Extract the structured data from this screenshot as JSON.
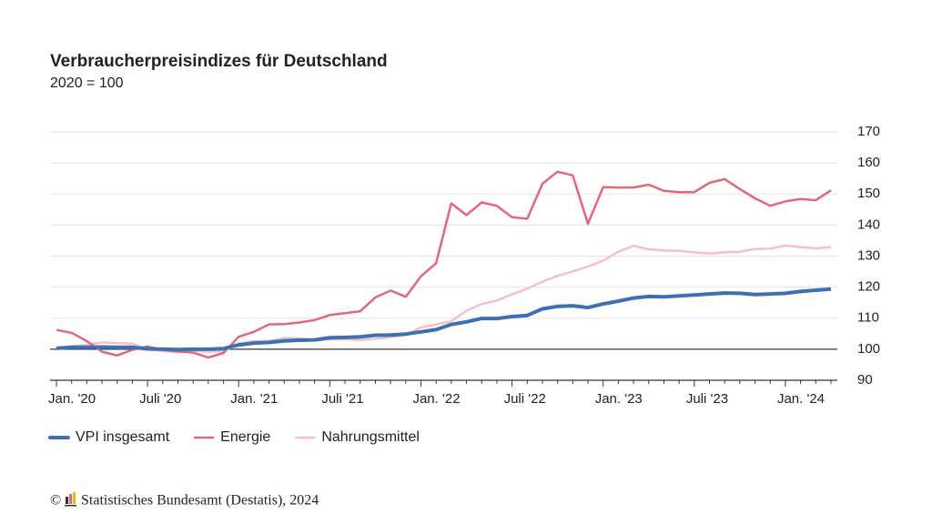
{
  "chart_data": {
    "type": "line",
    "title": "Verbraucherpreisindizes für Deutschland",
    "subtitle": "2020 = 100",
    "categories": [
      "Jan. '20",
      null,
      null,
      null,
      null,
      null,
      "Juli '20",
      null,
      null,
      null,
      null,
      null,
      "Jan. '21",
      null,
      null,
      null,
      null,
      null,
      "Juli '21",
      null,
      null,
      null,
      null,
      null,
      "Jan. '22",
      null,
      null,
      null,
      null,
      null,
      "Juli '22",
      null,
      null,
      null,
      null,
      null,
      "Jan. '23",
      null,
      null,
      null,
      null,
      null,
      "Juli '23",
      null,
      null,
      null,
      null,
      null,
      "Jan. '24",
      null,
      null,
      null
    ],
    "series": [
      {
        "name": "VPI insgesamt",
        "color": "#3d6fb3",
        "width": 4,
        "values": [
          100.3,
          100.6,
          100.6,
          100.7,
          100.6,
          100.6,
          100.1,
          100.0,
          99.9,
          100.0,
          100.0,
          100.2,
          101.4,
          102.0,
          102.2,
          102.7,
          102.9,
          103.0,
          103.7,
          103.8,
          104.0,
          104.5,
          104.6,
          104.9,
          105.6,
          106.3,
          108.0,
          108.8,
          109.9,
          109.9,
          110.5,
          110.9,
          113.0,
          113.8,
          114.0,
          113.4,
          114.6,
          115.5,
          116.5,
          117.0,
          116.9,
          117.2,
          117.5,
          117.8,
          118.1,
          118.0,
          117.6,
          117.8,
          118.0,
          118.6,
          119.0,
          119.4
        ]
      },
      {
        "name": "Energie",
        "color": "#e0687a",
        "width": 2.5,
        "values": [
          106.2,
          105.3,
          102.6,
          99.2,
          98.0,
          99.8,
          100.9,
          99.8,
          99.3,
          98.9,
          97.3,
          98.8,
          104.0,
          105.6,
          108.0,
          108.1,
          108.6,
          109.4,
          111.0,
          111.6,
          112.2,
          116.7,
          118.9,
          116.9,
          123.5,
          127.7,
          147.0,
          143.2,
          147.3,
          146.2,
          142.5,
          142.0,
          153.3,
          157.2,
          156.0,
          140.4,
          152.2,
          152.1,
          152.1,
          153.0,
          151.0,
          150.6,
          150.6,
          153.6,
          154.8,
          151.6,
          148.6,
          146.2,
          147.6,
          148.4,
          148.0,
          151.2
        ]
      },
      {
        "name": "Nahrungsmittel",
        "color": "#f6bfc5",
        "width": 2.5,
        "values": [
          100.1,
          101.0,
          101.4,
          102.2,
          102.0,
          101.8,
          100.0,
          99.4,
          99.0,
          99.5,
          99.2,
          99.3,
          101.8,
          102.6,
          102.6,
          103.6,
          103.5,
          102.9,
          103.1,
          103.2,
          103.0,
          103.3,
          103.9,
          104.6,
          107.0,
          108.0,
          109.0,
          112.4,
          114.6,
          115.7,
          117.7,
          119.5,
          121.8,
          123.6,
          125.1,
          126.6,
          128.5,
          131.4,
          133.3,
          132.2,
          131.8,
          131.7,
          131.2,
          130.8,
          131.2,
          131.4,
          132.3,
          132.4,
          133.4,
          132.9,
          132.5,
          132.9
        ]
      }
    ],
    "ylim": [
      90,
      170
    ],
    "yticks": [
      90,
      100,
      110,
      120,
      130,
      140,
      150,
      160,
      170
    ],
    "grid": true,
    "reference_line": 100,
    "legend": "bottom-left"
  },
  "footer": {
    "copyright": "©",
    "source": "Statistisches Bundesamt (Destatis), 2024"
  }
}
